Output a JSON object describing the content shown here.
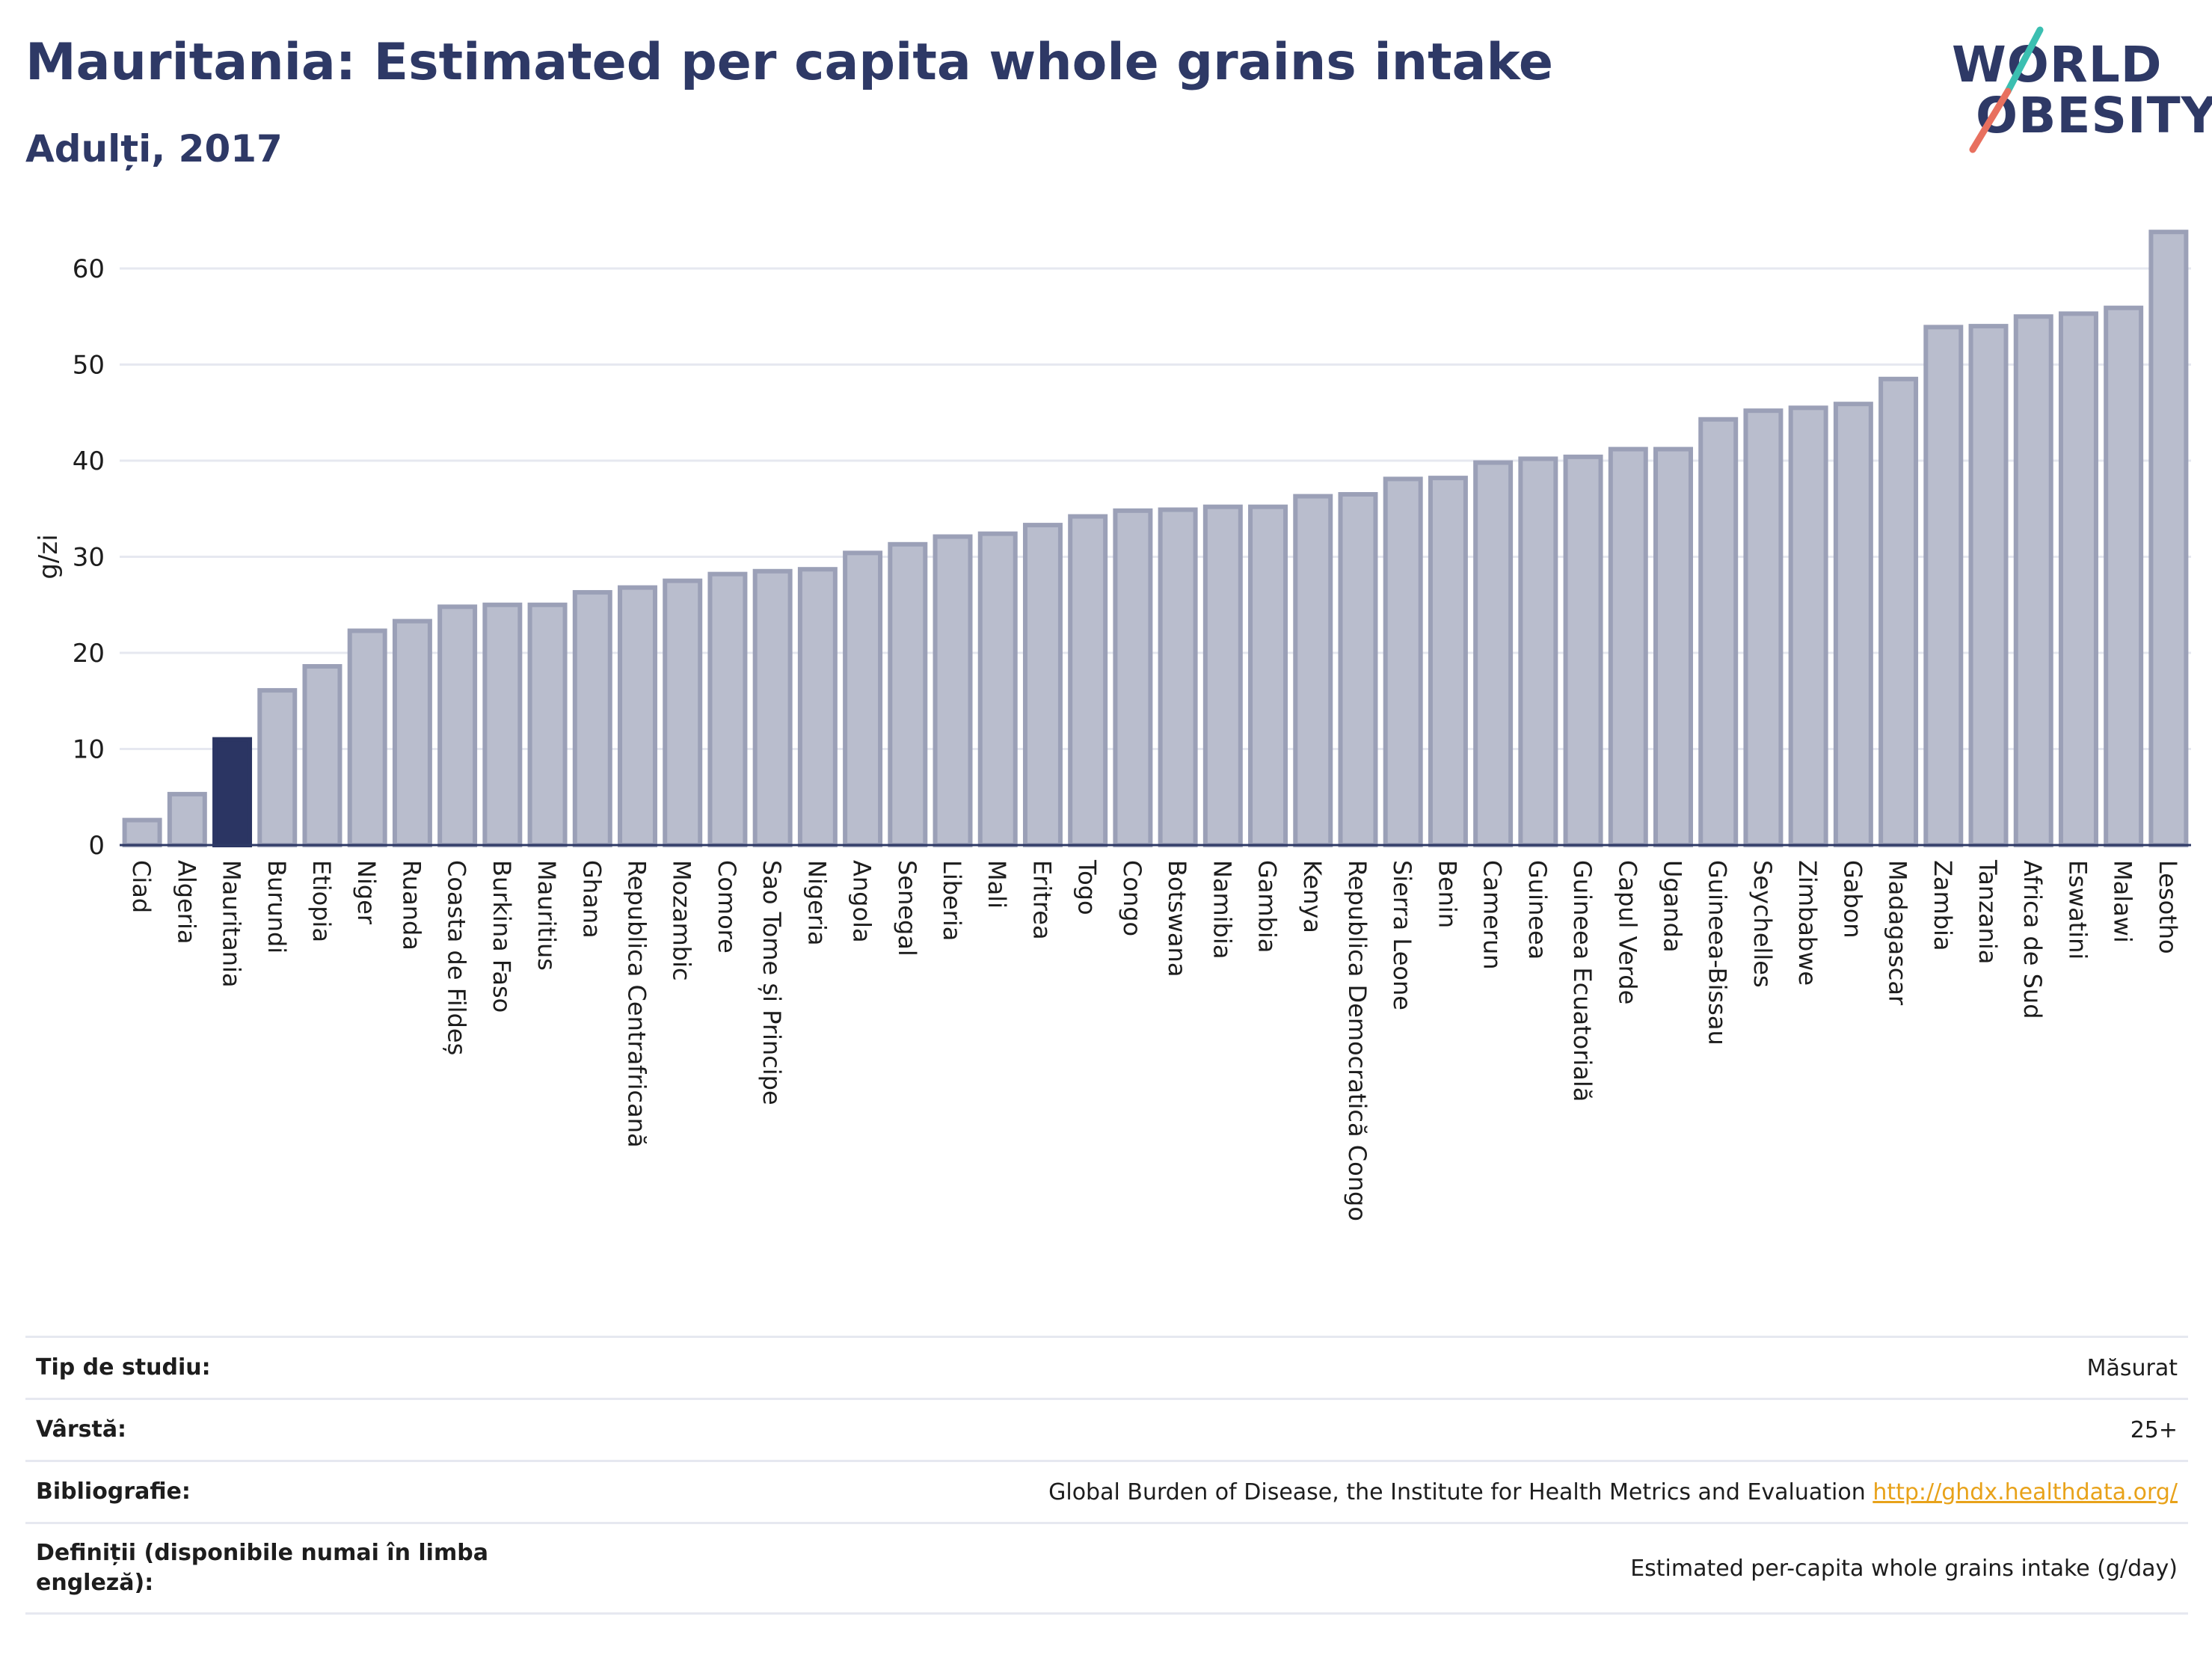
{
  "header": {
    "title": "Mauritania: Estimated per capita whole grains intake",
    "subtitle": "Adulți, 2017"
  },
  "logo": {
    "line1": "WORLD",
    "line2": "OBESITY"
  },
  "colors": {
    "highlight_bar": "#2b3563",
    "default_bar_fill": "#b9bdcd",
    "default_bar_stroke": "#9ba0b7",
    "axis": "#2e3966",
    "grid": "#e6e8f0",
    "link": "#e8a21a"
  },
  "chart_data": {
    "type": "bar",
    "title": "Mauritania: Estimated per capita whole grains intake",
    "subtitle": "Adulți, 2017",
    "xlabel": "",
    "ylabel": "g/zi",
    "ylim": [
      0,
      64
    ],
    "yticks": [
      0,
      10,
      20,
      30,
      40,
      50,
      60
    ],
    "grid": true,
    "highlight": "Mauritania",
    "categories": [
      "Ciad",
      "Algeria",
      "Mauritania",
      "Burundi",
      "Etiopia",
      "Niger",
      "Ruanda",
      "Coasta de Fildeș",
      "Burkina Faso",
      "Mauritius",
      "Ghana",
      "Republica Centrafricană",
      "Mozambic",
      "Comore",
      "Sao Tome și Principe",
      "Nigeria",
      "Angola",
      "Senegal",
      "Liberia",
      "Mali",
      "Eritrea",
      "Togo",
      "Congo",
      "Botswana",
      "Namibia",
      "Gambia",
      "Kenya",
      "Republica Democratică Congo",
      "Sierra Leone",
      "Benin",
      "Camerun",
      "Guineea",
      "Guineea Ecuatorială",
      "Capul Verde",
      "Uganda",
      "Guineea-Bissau",
      "Seychelles",
      "Zimbabwe",
      "Gabon",
      "Madagascar",
      "Zambia",
      "Tanzania",
      "Africa de Sud",
      "Eswatini",
      "Malawi",
      "Lesotho"
    ],
    "values": [
      2.6,
      5.3,
      11.0,
      16.1,
      18.6,
      22.3,
      23.3,
      24.8,
      25.0,
      25.0,
      26.3,
      26.8,
      27.5,
      28.2,
      28.5,
      28.7,
      30.4,
      31.3,
      32.1,
      32.4,
      33.3,
      34.2,
      34.8,
      34.9,
      35.2,
      35.2,
      36.3,
      36.5,
      38.1,
      38.2,
      39.8,
      40.2,
      40.4,
      41.2,
      41.2,
      44.3,
      45.2,
      45.5,
      45.9,
      48.5,
      53.9,
      54.0,
      55.0,
      55.3,
      55.9,
      63.8
    ]
  },
  "info": {
    "rows": [
      {
        "label": "Tip de studiu:",
        "value": "Măsurat"
      },
      {
        "label": "Vârstă:",
        "value": "25+"
      },
      {
        "label": "Bibliografie:",
        "value": "Global Burden of Disease, the Institute for Health Metrics and Evaluation",
        "link": "http://ghdx.healthdata.org/"
      },
      {
        "label": "Definiții (disponibile numai în limba engleză):",
        "value": "Estimated per-capita whole grains intake (g/day)"
      }
    ]
  }
}
